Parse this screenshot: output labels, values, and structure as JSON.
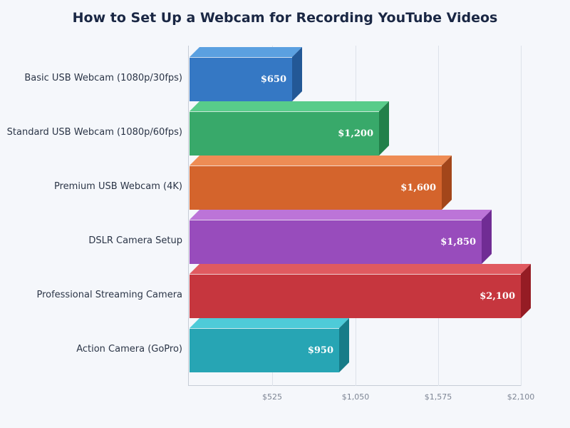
{
  "title": "How to Set Up a Webcam for Recording YouTube Videos",
  "chart_data": {
    "type": "bar",
    "orientation": "horizontal",
    "style": "3d",
    "title": "How to Set Up a Webcam for Recording YouTube Videos",
    "xlabel": "",
    "ylabel": "",
    "xlim": [
      0,
      2100
    ],
    "grid": true,
    "legend": null,
    "x_ticks": [
      "$525",
      "$1,050",
      "$1,575",
      "$2,100"
    ],
    "x_tick_values": [
      525,
      1050,
      1575,
      2100
    ],
    "categories": [
      "Basic USB Webcam (1080p/30fps)",
      "Standard USB Webcam (1080p/60fps)",
      "Premium USB Webcam (4K)",
      "DSLR Camera Setup",
      "Professional Streaming Camera",
      "Action Camera (GoPro)"
    ],
    "values": [
      650,
      1200,
      1600,
      1850,
      2100,
      950
    ],
    "value_labels": [
      "$650",
      "$1,200",
      "$1,600",
      "$1,850",
      "$2,100",
      "$950"
    ],
    "colors": [
      {
        "front": "#3578c4",
        "top": "#5ba0e0",
        "side": "#235896"
      },
      {
        "front": "#38a96a",
        "top": "#58cc8a",
        "side": "#22804a"
      },
      {
        "front": "#d4642c",
        "top": "#ee8c54",
        "side": "#a3461a"
      },
      {
        "front": "#984cbc",
        "top": "#bc74d8",
        "side": "#702c94"
      },
      {
        "front": "#c6363e",
        "top": "#e05a60",
        "side": "#951c24"
      },
      {
        "front": "#27a5b4",
        "top": "#4ecbd8",
        "side": "#177c88"
      }
    ]
  }
}
